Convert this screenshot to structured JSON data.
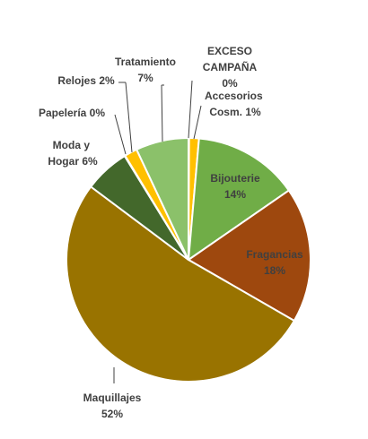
{
  "chart_data": {
    "type": "pie",
    "title": "",
    "slices": [
      {
        "label": "EXCESO CAMPAÑA",
        "value": 0,
        "pct_label": "0%",
        "color": "#FFC000"
      },
      {
        "label": "Accesorios Cosm.",
        "value": 1,
        "pct_label": "1%",
        "color": "#FFC000"
      },
      {
        "label": "Bijouterie",
        "value": 14,
        "pct_label": "14%",
        "color": "#70AD47"
      },
      {
        "label": "Fragancias",
        "value": 18,
        "pct_label": "18%",
        "color": "#9E480E"
      },
      {
        "label": "Maquillajes",
        "value": 52,
        "pct_label": "52%",
        "color": "#997300"
      },
      {
        "label": "Moda y Hogar",
        "value": 6,
        "pct_label": "6%",
        "color": "#43682B"
      },
      {
        "label": "Papelería",
        "value": 0,
        "pct_label": "0%",
        "color": "#FFC000"
      },
      {
        "label": "Relojes",
        "value": 2,
        "pct_label": "2%",
        "color": "#FFC000"
      },
      {
        "label": "Tratamiento",
        "value": 7,
        "pct_label": "7%",
        "color": "#8BC16A"
      }
    ],
    "legend": "none",
    "data_labels": "outside with leader lines"
  }
}
